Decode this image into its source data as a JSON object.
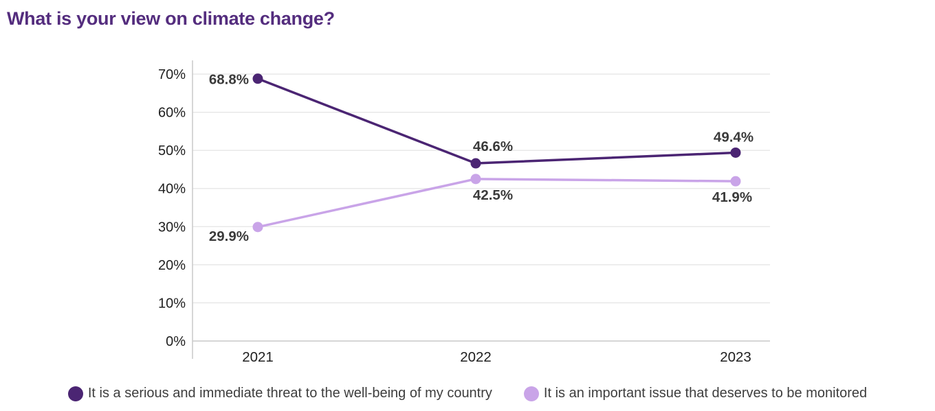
{
  "title": {
    "text": "What is your view on climate change?",
    "color": "#542d7e"
  },
  "chart_data": {
    "type": "line",
    "categories": [
      "2021",
      "2022",
      "2023"
    ],
    "series": [
      {
        "name": "It is a serious and immediate threat to the well-being of my country",
        "color": "#4b2573",
        "values": [
          68.8,
          46.6,
          49.4
        ],
        "point_labels": [
          "68.8%",
          "46.6%",
          "49.4%"
        ]
      },
      {
        "name": "It is an important issue that deserves to be monitored",
        "color": "#c9a4e8",
        "values": [
          29.9,
          42.5,
          41.9
        ],
        "point_labels": [
          "29.9%",
          "42.5%",
          "41.9%"
        ]
      }
    ],
    "y_axis": {
      "range": [
        0,
        70
      ],
      "ticks": [
        0,
        10,
        20,
        30,
        40,
        50,
        60,
        70
      ],
      "tick_labels": [
        "0%",
        "10%",
        "20%",
        "30%",
        "40%",
        "50%",
        "60%",
        "70%"
      ]
    },
    "grid": true,
    "legend_position": "bottom"
  },
  "colors": {
    "gridline": "#e4e4e4",
    "axis_line": "#c9c9c9",
    "tick_text": "#1f1f1f",
    "data_label_text": "#3a3a3a",
    "legend_text": "#3d3d3d",
    "background": "#ffffff"
  }
}
